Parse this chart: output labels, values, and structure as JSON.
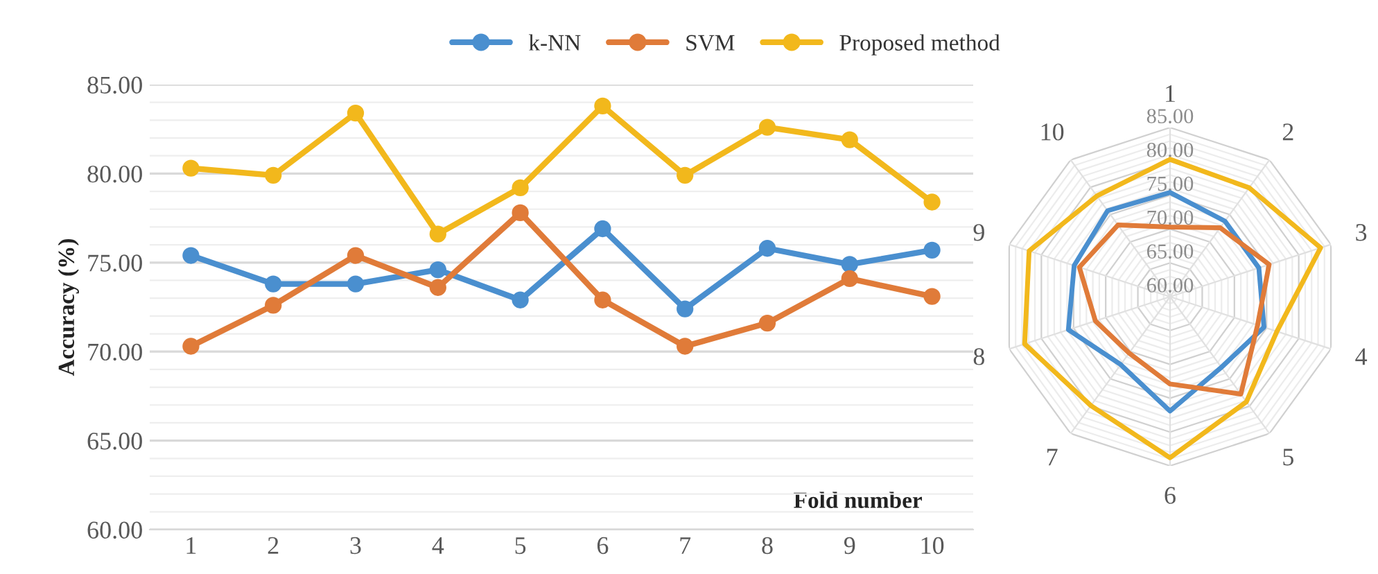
{
  "chart_data": [
    {
      "type": "line",
      "ylabel": "Accuracy (%)",
      "xlabel": "Fold number",
      "categories": [
        "1",
        "2",
        "3",
        "4",
        "5",
        "6",
        "7",
        "8",
        "9",
        "10"
      ],
      "series": [
        {
          "name": "k-NN",
          "color": "#4a8fcf",
          "values": [
            75.4,
            73.8,
            73.8,
            74.6,
            72.9,
            76.9,
            72.4,
            75.8,
            74.9,
            75.7
          ]
        },
        {
          "name": "SVM",
          "color": "#e07b39",
          "values": [
            70.3,
            72.6,
            75.4,
            73.6,
            77.8,
            72.9,
            70.3,
            71.6,
            74.1,
            73.1
          ]
        },
        {
          "name": "Proposed method",
          "color": "#f2b81c",
          "values": [
            80.3,
            79.9,
            83.4,
            76.6,
            79.2,
            83.8,
            79.9,
            82.6,
            81.9,
            78.4
          ]
        }
      ],
      "ylim": [
        60,
        85
      ],
      "yticks": [
        {
          "value": 60,
          "label": "60.00"
        },
        {
          "value": 65,
          "label": "65.00"
        },
        {
          "value": 70,
          "label": "70.00"
        },
        {
          "value": 75,
          "label": "75.00"
        },
        {
          "value": 80,
          "label": "80.00"
        },
        {
          "value": 85,
          "label": "85.00"
        }
      ],
      "grid": "y",
      "legend": "top",
      "marker": "circle",
      "line_style": "solid"
    },
    {
      "type": "radar",
      "categories": [
        "1",
        "2",
        "3",
        "4",
        "5",
        "6",
        "7",
        "8",
        "9",
        "10"
      ],
      "series": [
        {
          "color": "#4a8fcf",
          "values": [
            75.4,
            73.8,
            73.8,
            74.6,
            72.9,
            76.9,
            72.4,
            75.8,
            74.9,
            75.7
          ]
        },
        {
          "color": "#e07b39",
          "values": [
            70.3,
            72.6,
            75.4,
            73.6,
            77.8,
            72.9,
            70.3,
            71.6,
            74.1,
            73.1
          ]
        },
        {
          "color": "#f2b81c",
          "values": [
            80.3,
            79.9,
            83.4,
            76.6,
            79.2,
            83.8,
            79.9,
            82.6,
            81.9,
            78.4
          ]
        }
      ],
      "ylim": [
        60,
        85
      ],
      "yticks": [
        {
          "value": 60,
          "label": "60.00"
        },
        {
          "value": 65,
          "label": "65.00"
        },
        {
          "value": 70,
          "label": "70.00"
        },
        {
          "value": 75,
          "label": "75.00"
        },
        {
          "value": 80,
          "label": "80.00"
        },
        {
          "value": 85,
          "label": "85.00"
        }
      ],
      "grid": true
    }
  ]
}
